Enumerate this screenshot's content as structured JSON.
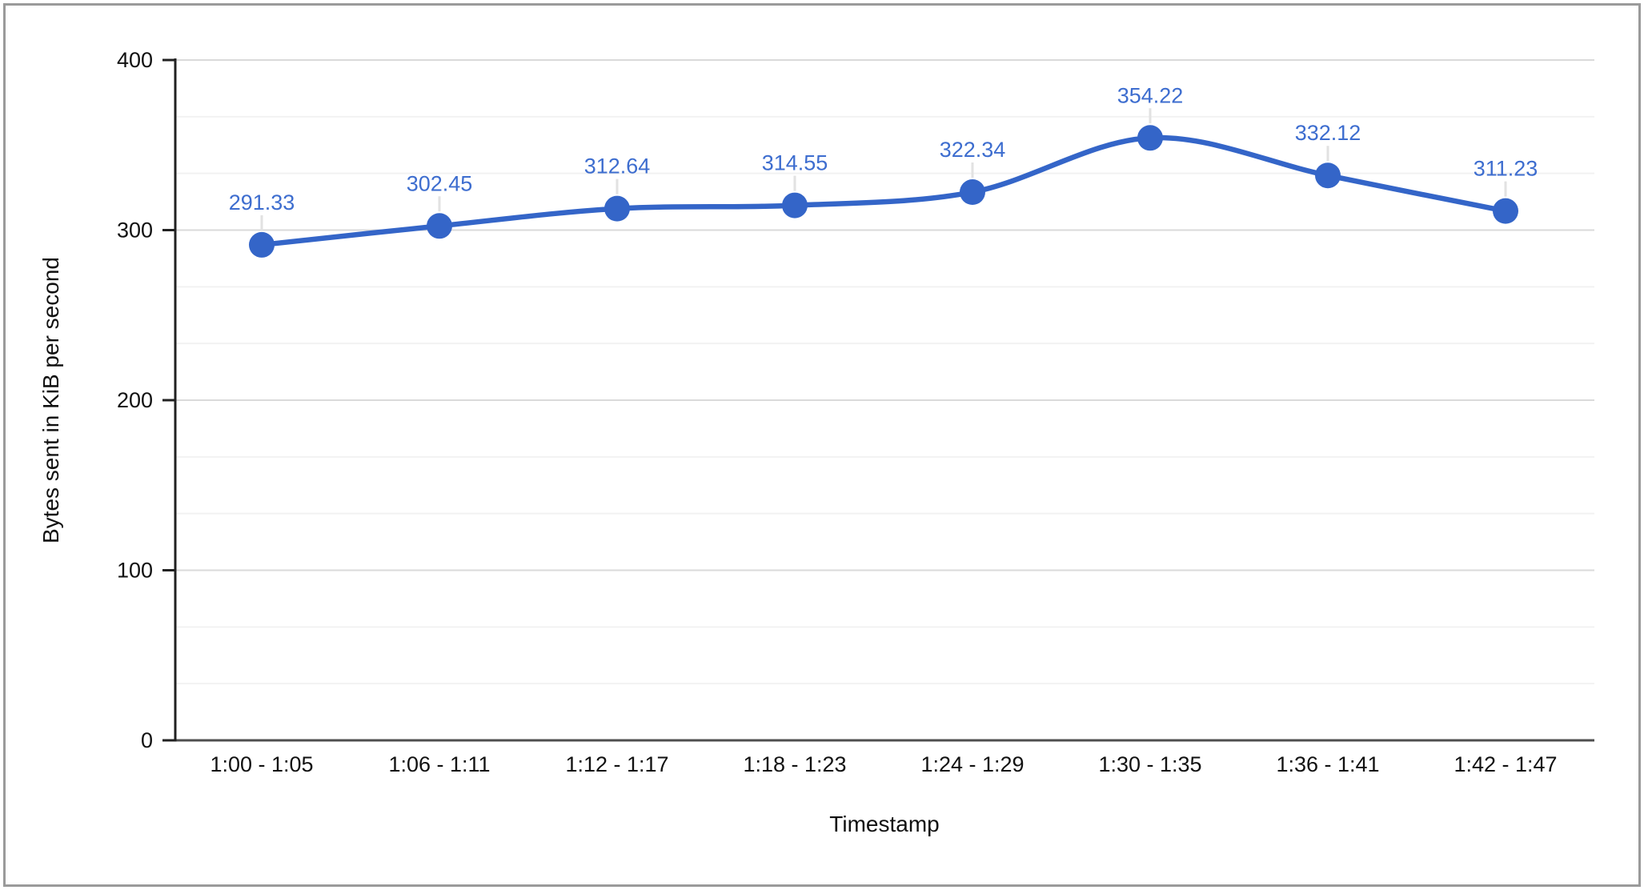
{
  "chart_data": {
    "type": "line",
    "title": "",
    "xlabel": "Timestamp",
    "ylabel": "Bytes sent in KiB per second",
    "categories": [
      "1:00 - 1:05",
      "1:06 - 1:11",
      "1:12 - 1:17",
      "1:18 - 1:23",
      "1:24 - 1:29",
      "1:30 - 1:35",
      "1:36 - 1:41",
      "1:42 - 1:47"
    ],
    "values": [
      291.33,
      302.45,
      312.64,
      314.55,
      322.34,
      354.22,
      332.12,
      311.23
    ],
    "data_labels": [
      "291.33",
      "302.45",
      "312.64",
      "314.55",
      "322.34",
      "354.22",
      "332.12",
      "311.23"
    ],
    "ylim": [
      0,
      400
    ],
    "yticks": [
      0,
      100,
      200,
      300,
      400
    ],
    "minor_gridlines_between_majors": 2,
    "grid": "major+minor horizontal",
    "legend": "none",
    "line_style": "smooth",
    "point_markers": true,
    "data_label_position": "above-point"
  },
  "colors": {
    "series_line": "#3465c8",
    "series_marker": "#3465c8",
    "data_label": "#3d6dcf",
    "axis_line": "#212121",
    "baseline": "#4f4f4f",
    "major_gridline": "#dadada",
    "minor_gridline": "#f2f2f2",
    "tick_label": "#111111",
    "axis_title": "#111111",
    "label_callout_stub": "#e2e2e2",
    "frame_border": "#9a9a9a",
    "background": "#ffffff"
  }
}
